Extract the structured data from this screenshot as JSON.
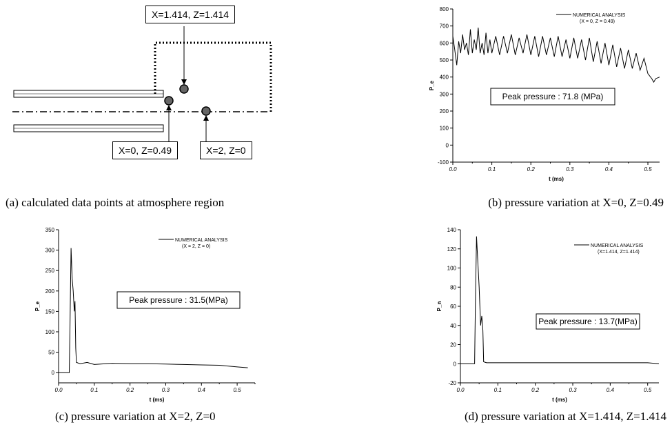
{
  "diagram": {
    "caption": "(a) calculated data points at atmosphere region",
    "labels": {
      "top": "X=1.414, Z=1.414",
      "left": "X=0, Z=0.49",
      "right": "X=2, Z=0"
    }
  },
  "chart_data": [
    {
      "id": "b",
      "type": "line",
      "caption": "(b) pressure variation at X=0, Z=0.49",
      "title": "",
      "xlabel": "t (ms)",
      "ylabel": "P_e",
      "xlim": [
        0.0,
        0.53
      ],
      "ylim": [
        -100,
        800
      ],
      "xticks": [
        "0.0",
        "0.1",
        "0.2",
        "0.3",
        "0.4",
        "0.5"
      ],
      "yticks": [
        "-100",
        "0",
        "100",
        "200",
        "300",
        "400",
        "500",
        "600",
        "700",
        "800"
      ],
      "legend": [
        "NUMERICAL ANALYSIS",
        "(X = 0, Z = 0.49)"
      ],
      "legend_position": "top-right",
      "annotation": "Peak pressure : 71.8 (MPa)",
      "series": [
        {
          "x": [
            0.0,
            0.005,
            0.01,
            0.015,
            0.02,
            0.025,
            0.03,
            0.035,
            0.04,
            0.045,
            0.05,
            0.055,
            0.06,
            0.065,
            0.07,
            0.075,
            0.08,
            0.085,
            0.09,
            0.095,
            0.1,
            0.11,
            0.12,
            0.13,
            0.14,
            0.15,
            0.16,
            0.17,
            0.18,
            0.19,
            0.2,
            0.21,
            0.22,
            0.23,
            0.24,
            0.25,
            0.26,
            0.27,
            0.28,
            0.29,
            0.3,
            0.31,
            0.32,
            0.33,
            0.34,
            0.35,
            0.36,
            0.37,
            0.38,
            0.39,
            0.4,
            0.41,
            0.42,
            0.43,
            0.44,
            0.45,
            0.46,
            0.47,
            0.48,
            0.49,
            0.5,
            0.51,
            0.515,
            0.52,
            0.53
          ],
          "y": [
            640,
            560,
            470,
            610,
            540,
            650,
            560,
            600,
            530,
            680,
            540,
            620,
            560,
            690,
            540,
            600,
            530,
            660,
            540,
            620,
            540,
            640,
            530,
            640,
            540,
            650,
            530,
            630,
            540,
            650,
            530,
            640,
            520,
            640,
            530,
            630,
            520,
            640,
            520,
            620,
            510,
            630,
            510,
            620,
            500,
            630,
            490,
            610,
            480,
            600,
            470,
            590,
            460,
            570,
            450,
            560,
            450,
            540,
            440,
            510,
            420,
            390,
            370,
            390,
            400
          ]
        }
      ]
    },
    {
      "id": "c",
      "type": "line",
      "caption": "(c) pressure variation at X=2, Z=0",
      "title": "",
      "xlabel": "t (ms)",
      "ylabel": "P_e",
      "xlim": [
        0.0,
        0.55
      ],
      "ylim": [
        -25,
        350
      ],
      "xticks": [
        "0.0",
        "0.1",
        "0.2",
        "0.3",
        "0.4",
        "0.5"
      ],
      "yticks": [
        "0",
        "50",
        "100",
        "150",
        "200",
        "250",
        "300",
        "350"
      ],
      "legend": [
        "NUMERICAL ANALYSIS",
        "(X = 2, Z = 0)"
      ],
      "legend_position": "top-right",
      "annotation": "Peak pressure : 31.5(MPa)",
      "series": [
        {
          "x": [
            0.0,
            0.03,
            0.032,
            0.035,
            0.038,
            0.041,
            0.044,
            0.046,
            0.048,
            0.05,
            0.06,
            0.08,
            0.1,
            0.15,
            0.2,
            0.25,
            0.3,
            0.35,
            0.4,
            0.45,
            0.5,
            0.53
          ],
          "y": [
            0,
            0,
            120,
            305,
            230,
            200,
            150,
            175,
            60,
            25,
            22,
            25,
            20,
            23,
            22,
            22,
            21,
            20,
            19,
            18,
            14,
            12
          ]
        }
      ]
    },
    {
      "id": "d",
      "type": "line",
      "caption": "(d) pressure variation at X=1.414, Z=1.414",
      "title": "",
      "xlabel": "t (ms)",
      "ylabel": "P_n",
      "xlim": [
        0.0,
        0.53
      ],
      "ylim": [
        -20,
        140
      ],
      "xticks": [
        "0.0",
        "0.1",
        "0.2",
        "0.3",
        "0.4",
        "0.5"
      ],
      "yticks": [
        "-20",
        "0",
        "20",
        "40",
        "60",
        "80",
        "100",
        "120",
        "140"
      ],
      "legend": [
        "NUMERICAL ANALYSIS",
        "(X=1.414, Z=1.414)"
      ],
      "legend_position": "top-right",
      "annotation": "Peak pressure : 13.7(MPa)",
      "series": [
        {
          "x": [
            0.0,
            0.038,
            0.04,
            0.043,
            0.046,
            0.05,
            0.054,
            0.057,
            0.06,
            0.062,
            0.07,
            0.1,
            0.2,
            0.3,
            0.4,
            0.5,
            0.53
          ],
          "y": [
            0,
            0,
            60,
            133,
            110,
            80,
            40,
            50,
            35,
            2,
            1,
            1,
            1,
            1,
            1,
            1,
            0
          ]
        }
      ]
    }
  ]
}
